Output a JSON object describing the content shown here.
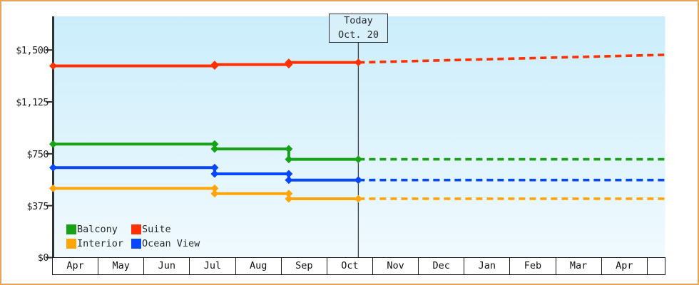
{
  "colors": {
    "page_border": "#E8A45C",
    "plot_bg_top": "#CBEDFB",
    "plot_bg_bottom": "#F1FAFE",
    "axis": "#2E3436",
    "today_line": "#3C4043",
    "today_box_bg": "#D7F0FA",
    "today_box_border": "#2F3437",
    "month_band_border": "#1A1A1A"
  },
  "chart_data": {
    "type": "line",
    "title": "",
    "description": "Cruise cabin price history by category with dashed price forecast after today",
    "t_unit": "months elapsed since Apr 1 (x axis)",
    "x_axis": {
      "months": [
        "Apr",
        "May",
        "Jun",
        "Jul",
        "Aug",
        "Sep",
        "Oct",
        "Nov",
        "Dec",
        "Jan",
        "Feb",
        "Mar",
        "Apr"
      ]
    },
    "y_axis": {
      "unit": "USD",
      "range": [
        0,
        1743
      ],
      "grid": "off",
      "ticks": [
        {
          "value": 1500,
          "label": "$1,500"
        },
        {
          "value": 1125,
          "label": "$1,125"
        },
        {
          "value": 750,
          "label": "$750"
        },
        {
          "value": 375,
          "label": "$375"
        },
        {
          "value": 0,
          "label": "$0"
        }
      ]
    },
    "today": {
      "t": 6.67,
      "line1": "Today",
      "line2": "Oct. 20",
      "date": "Oct. 20"
    },
    "t_end": 13.37,
    "series": [
      {
        "name": "Suite",
        "color": "#FF3103",
        "points": [
          {
            "t": 0,
            "v": 1385
          },
          {
            "t": 3.53,
            "v": 1385
          },
          {
            "t": 3.53,
            "v": 1395
          },
          {
            "t": 5.15,
            "v": 1395
          },
          {
            "t": 5.15,
            "v": 1410
          },
          {
            "t": 6.67,
            "v": 1410
          }
        ],
        "forecast": [
          {
            "t": 6.67,
            "v": 1410
          },
          {
            "t": 13.37,
            "v": 1465
          }
        ]
      },
      {
        "name": "Balcony",
        "color": "#15A315",
        "points": [
          {
            "t": 0,
            "v": 820
          },
          {
            "t": 3.53,
            "v": 820
          },
          {
            "t": 3.53,
            "v": 785
          },
          {
            "t": 5.15,
            "v": 785
          },
          {
            "t": 5.15,
            "v": 710
          },
          {
            "t": 6.67,
            "v": 710
          }
        ],
        "forecast": [
          {
            "t": 6.67,
            "v": 710
          },
          {
            "t": 13.37,
            "v": 710
          }
        ]
      },
      {
        "name": "Ocean View",
        "color": "#0846FA",
        "points": [
          {
            "t": 0,
            "v": 650
          },
          {
            "t": 3.53,
            "v": 650
          },
          {
            "t": 3.53,
            "v": 605
          },
          {
            "t": 5.15,
            "v": 605
          },
          {
            "t": 5.15,
            "v": 560
          },
          {
            "t": 6.67,
            "v": 560
          }
        ],
        "forecast": [
          {
            "t": 6.67,
            "v": 560
          },
          {
            "t": 13.37,
            "v": 560
          }
        ]
      },
      {
        "name": "Interior",
        "color": "#FFA508",
        "points": [
          {
            "t": 0,
            "v": 500
          },
          {
            "t": 3.53,
            "v": 500
          },
          {
            "t": 3.53,
            "v": 462
          },
          {
            "t": 5.15,
            "v": 462
          },
          {
            "t": 5.15,
            "v": 425
          },
          {
            "t": 6.67,
            "v": 425
          }
        ],
        "forecast": [
          {
            "t": 6.67,
            "v": 425
          },
          {
            "t": 13.37,
            "v": 425
          }
        ]
      }
    ],
    "legend": {
      "position": "bottom-left-inside-plot",
      "items": [
        {
          "label": "Balcony",
          "color": "#15A315"
        },
        {
          "label": "Suite",
          "color": "#FF3103"
        },
        {
          "label": "Interior",
          "color": "#FFA508"
        },
        {
          "label": "Ocean View",
          "color": "#0846FA"
        }
      ]
    }
  }
}
